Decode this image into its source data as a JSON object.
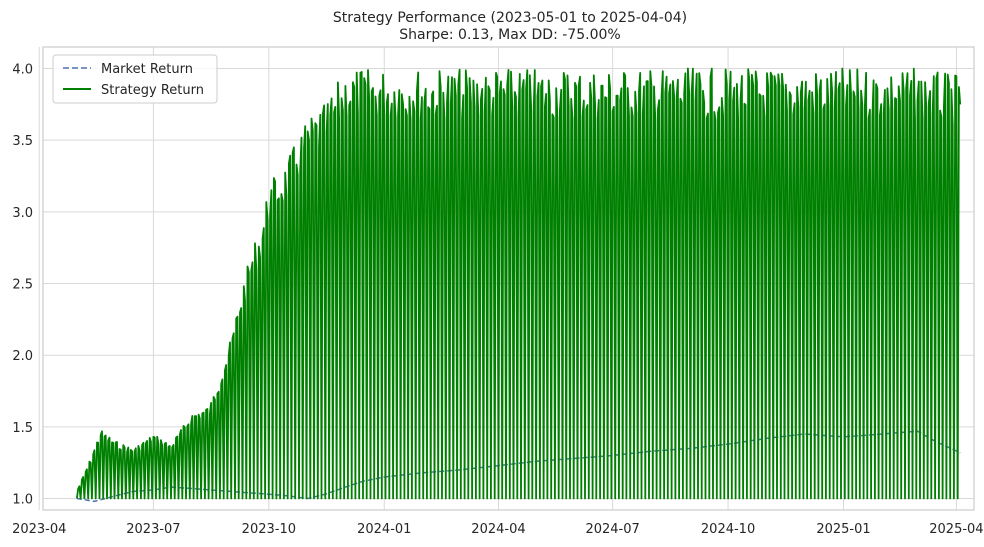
{
  "chart_data": {
    "type": "line",
    "title": "Strategy Performance (2023-05-01 to 2025-04-04)",
    "subtitle": "Sharpe: 0.13, Max DD: -75.00%",
    "xlabel": "",
    "ylabel": "",
    "xlim": [
      "2023-04-04",
      "2025-04-15"
    ],
    "ylim": [
      0.92,
      4.15
    ],
    "x_ticks": [
      "2023-04",
      "2023-07",
      "2023-10",
      "2024-01",
      "2024-04",
      "2024-07",
      "2024-10",
      "2025-01",
      "2025-04"
    ],
    "y_ticks": [
      "1.0",
      "1.5",
      "2.0",
      "2.5",
      "3.0",
      "3.5",
      "4.0"
    ],
    "grid": true,
    "legend_position": "top-left",
    "series": [
      {
        "name": "Market Return",
        "style": "dashed",
        "color": "#4c72b0",
        "x": [
          "2023-05-01",
          "2023-05-15",
          "2023-06-01",
          "2023-06-15",
          "2023-07-01",
          "2023-07-15",
          "2023-08-01",
          "2023-08-15",
          "2023-09-01",
          "2023-09-15",
          "2023-10-01",
          "2023-10-15",
          "2023-11-01",
          "2023-11-15",
          "2023-12-01",
          "2023-12-15",
          "2024-01-01",
          "2024-02-01",
          "2024-03-01",
          "2024-04-01",
          "2024-05-01",
          "2024-06-01",
          "2024-07-01",
          "2024-08-01",
          "2024-09-01",
          "2024-10-01",
          "2024-11-01",
          "2024-12-01",
          "2025-01-01",
          "2025-02-01",
          "2025-03-01",
          "2025-03-15",
          "2025-04-04"
        ],
        "values": [
          1.0,
          0.98,
          1.02,
          1.05,
          1.06,
          1.08,
          1.07,
          1.06,
          1.05,
          1.04,
          1.03,
          1.02,
          1.0,
          1.03,
          1.08,
          1.12,
          1.15,
          1.18,
          1.2,
          1.23,
          1.26,
          1.28,
          1.3,
          1.33,
          1.35,
          1.38,
          1.42,
          1.45,
          1.43,
          1.45,
          1.47,
          1.4,
          1.32
        ]
      },
      {
        "name": "Strategy Return",
        "style": "solid",
        "color": "#008000",
        "baseline": 1.0,
        "x": [
          "2023-05-01",
          "2023-05-12",
          "2023-05-20",
          "2023-06-01",
          "2023-06-15",
          "2023-07-01",
          "2023-07-15",
          "2023-08-01",
          "2023-08-15",
          "2023-09-01",
          "2023-09-10",
          "2023-09-20",
          "2023-09-25",
          "2023-10-01",
          "2023-10-15",
          "2023-11-01",
          "2023-11-15",
          "2023-12-01",
          "2023-12-15",
          "2024-01-01",
          "2024-02-01",
          "2024-03-01",
          "2024-04-01",
          "2024-05-01",
          "2024-06-01",
          "2024-07-01",
          "2024-08-01",
          "2024-09-01",
          "2024-10-01",
          "2024-11-01",
          "2024-12-01",
          "2025-01-01",
          "2025-02-01",
          "2025-03-01",
          "2025-04-04"
        ],
        "peaks": [
          1.05,
          1.28,
          1.48,
          1.4,
          1.35,
          1.45,
          1.38,
          1.6,
          1.65,
          2.12,
          2.5,
          2.8,
          2.9,
          3.2,
          3.35,
          3.65,
          3.75,
          4.0,
          4.0,
          4.0,
          4.0,
          4.0,
          4.0,
          4.0,
          4.0,
          4.0,
          4.0,
          4.0,
          4.0,
          4.0,
          4.0,
          4.0,
          4.0,
          4.0,
          3.95
        ]
      }
    ]
  }
}
